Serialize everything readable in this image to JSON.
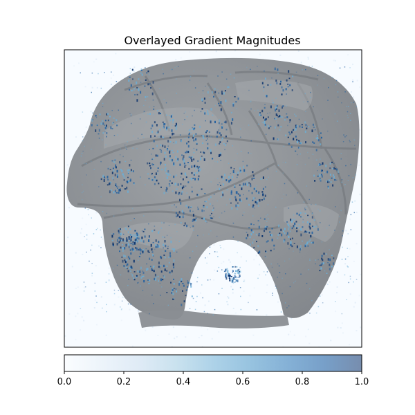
{
  "chart_data": {
    "type": "heatmap",
    "title": "Overlayed Gradient Magnitudes",
    "xlabel": "",
    "ylabel": "",
    "axes_ticks_visible": false,
    "image_description": "grayscale helmet image overlaid with blue gradient-magnitude heatmap",
    "colorbar": {
      "orientation": "horizontal",
      "colormap": "Blues",
      "alpha": 0.55,
      "range": [
        0.0,
        1.0
      ],
      "ticks": [
        0.0,
        0.2,
        0.4,
        0.6,
        0.8,
        1.0
      ],
      "tick_labels": [
        "0.0",
        "0.2",
        "0.4",
        "0.6",
        "0.8",
        "1.0"
      ],
      "colors": [
        "#f7fbff",
        "#deebf7",
        "#c6dbef",
        "#9ecae1",
        "#6baed6",
        "#4292c6",
        "#2171b5",
        "#08519c",
        "#08306b"
      ]
    },
    "overlay_colors": {
      "helmet_base": "#8d9196",
      "helmet_shade": "#7b7f84",
      "helmet_highlight": "#a3a7ab",
      "hotspot_dark": "#08306b",
      "hotspot_mid": "#1f5fa0",
      "hotspot_light": "#6baed6"
    }
  }
}
